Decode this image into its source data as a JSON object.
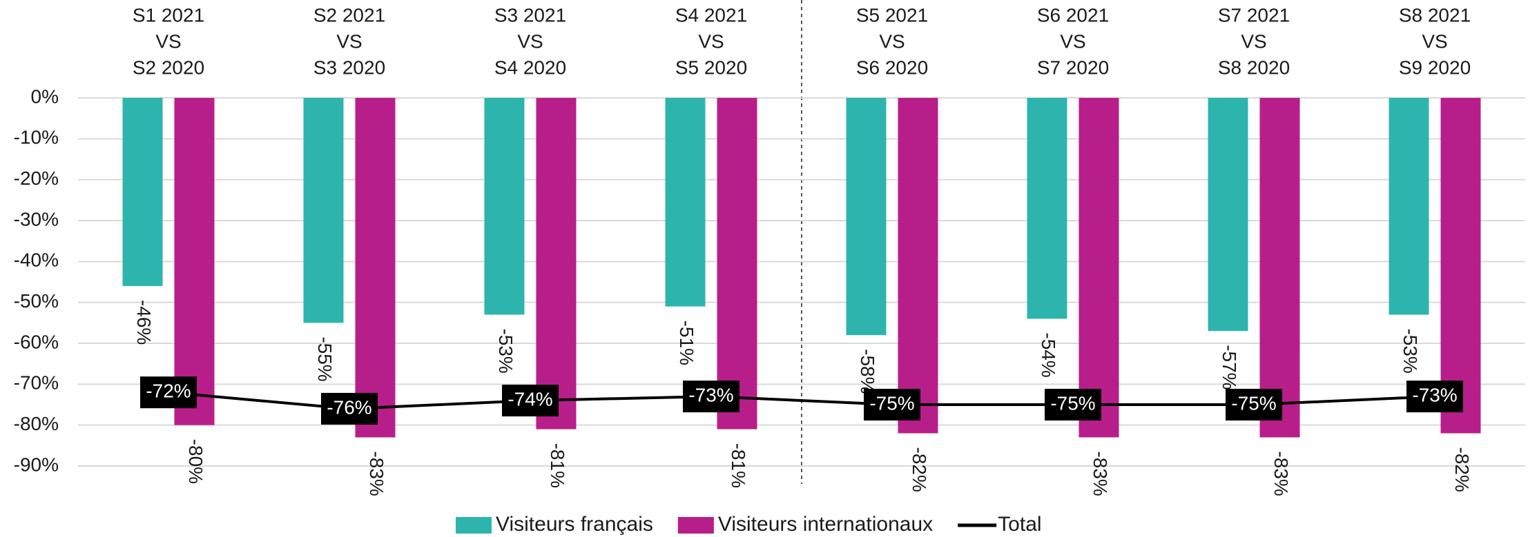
{
  "chart_data": {
    "type": "bar",
    "categories": [
      [
        "S1 2021",
        "VS",
        "S2 2020"
      ],
      [
        "S2 2021",
        "VS",
        "S3 2020"
      ],
      [
        "S3 2021",
        "VS",
        "S4 2020"
      ],
      [
        "S4 2021",
        "VS",
        "S5 2020"
      ],
      [
        "S5 2021",
        "VS",
        "S6 2020"
      ],
      [
        "S6 2021",
        "VS",
        "S7 2020"
      ],
      [
        "S7 2021",
        "VS",
        "S8 2020"
      ],
      [
        "S8 2021",
        "VS",
        "S9 2020"
      ]
    ],
    "series": [
      {
        "name": "Visiteurs français",
        "type": "bar",
        "color": "#2db5ad",
        "values": [
          -46,
          -55,
          -53,
          -51,
          -58,
          -54,
          -57,
          -53
        ],
        "value_labels": [
          "-46%",
          "-55%",
          "-53%",
          "-51%",
          "-58%",
          "-54%",
          "-57%",
          "-53%"
        ]
      },
      {
        "name": "Visiteurs internationaux",
        "type": "bar",
        "color": "#b81e8a",
        "values": [
          -80,
          -83,
          -81,
          -81,
          -82,
          -83,
          -83,
          -82
        ],
        "value_labels": [
          "-80%",
          "-83%",
          "-81%",
          "-81%",
          "-82%",
          "-83%",
          "-83%",
          "-82%"
        ]
      },
      {
        "name": "Total",
        "type": "line",
        "color": "#000000",
        "values": [
          -72,
          -76,
          -74,
          -73,
          -75,
          -75,
          -75,
          -73
        ],
        "value_labels": [
          "-72%",
          "-76%",
          "-74%",
          "-73%",
          "-75%",
          "-75%",
          "-75%",
          "-73%"
        ]
      }
    ],
    "ylim": [
      -90,
      0
    ],
    "yticks": [
      {
        "value": 0,
        "label": "0%"
      },
      {
        "value": -10,
        "label": "-10%"
      },
      {
        "value": -20,
        "label": "-20%"
      },
      {
        "value": -30,
        "label": "-30%"
      },
      {
        "value": -40,
        "label": "-40%"
      },
      {
        "value": -50,
        "label": "-50%"
      },
      {
        "value": -60,
        "label": "-60%"
      },
      {
        "value": -70,
        "label": "-70%"
      },
      {
        "value": -80,
        "label": "-80%"
      },
      {
        "value": -90,
        "label": "-90%"
      }
    ],
    "grid": true,
    "legend": "bottom"
  }
}
